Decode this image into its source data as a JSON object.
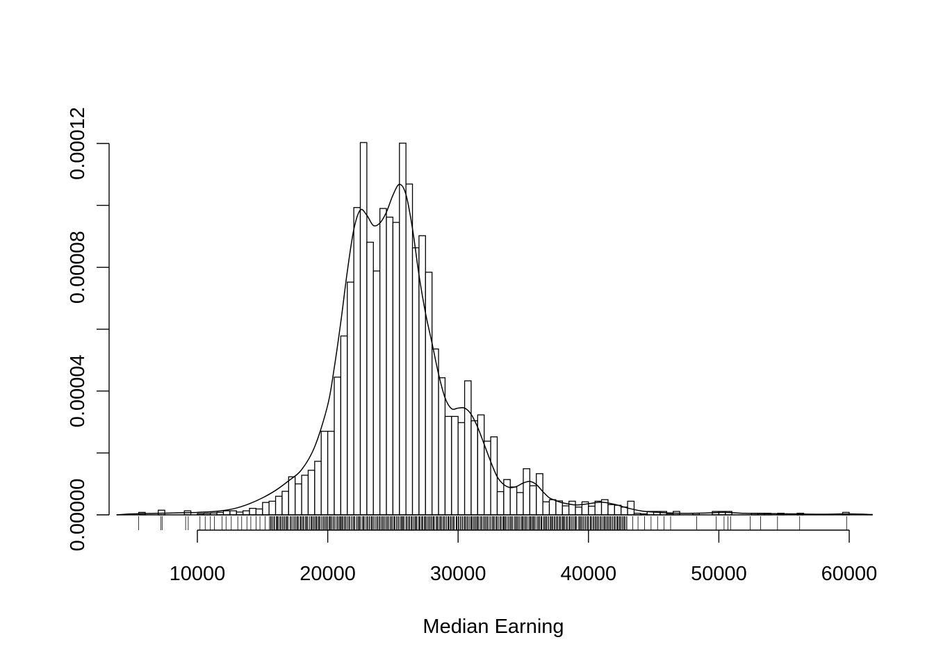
{
  "chart_data": {
    "type": "histogram",
    "title": "",
    "xlabel": "Median Earning",
    "ylabel": "",
    "x_ticks": [
      10000,
      20000,
      30000,
      40000,
      50000,
      60000
    ],
    "x_tick_labels": [
      "10000",
      "20000",
      "30000",
      "40000",
      "50000",
      "60000"
    ],
    "y_ticks": [
      0,
      2e-05,
      4e-05,
      6e-05,
      8e-05,
      0.0001,
      0.00012
    ],
    "y_tick_labels": [
      "0.00000",
      "",
      "0.00004",
      "",
      "0.00008",
      "",
      "0.00012"
    ],
    "xlim": [
      3800,
      61800
    ],
    "ylim": [
      0,
      0.000127
    ],
    "bin_width": 500,
    "bins": [
      [
        5500,
        8e-07
      ],
      [
        7000,
        1.5e-06
      ],
      [
        9000,
        1.3e-06
      ],
      [
        10000,
        4e-07
      ],
      [
        10500,
        5e-07
      ],
      [
        11000,
        6e-07
      ],
      [
        11500,
        8e-07
      ],
      [
        12000,
        1.3e-06
      ],
      [
        12500,
        1.3e-06
      ],
      [
        13000,
        9e-07
      ],
      [
        13500,
        1.3e-06
      ],
      [
        14000,
        2.1e-06
      ],
      [
        14500,
        1.9e-06
      ],
      [
        15000,
        4e-06
      ],
      [
        15500,
        4.4e-06
      ],
      [
        16000,
        6e-06
      ],
      [
        16500,
        7.6e-06
      ],
      [
        17000,
        1.23e-05
      ],
      [
        17500,
        1e-05
      ],
      [
        18000,
        1.28e-05
      ],
      [
        18500,
        1.44e-05
      ],
      [
        19000,
        1.73e-05
      ],
      [
        19500,
        2.7e-05
      ],
      [
        20000,
        2.7e-05
      ],
      [
        20500,
        4.45e-05
      ],
      [
        21000,
        5.78e-05
      ],
      [
        21500,
        7.52e-05
      ],
      [
        22000,
        9.93e-05
      ],
      [
        22500,
        0.0001203
      ],
      [
        23000,
        8.81e-05
      ],
      [
        23500,
        7.88e-05
      ],
      [
        24000,
        9.9e-05
      ],
      [
        24500,
        9.62e-05
      ],
      [
        25000,
        9.45e-05
      ],
      [
        25500,
        0.0001201
      ],
      [
        26000,
        0.0001069
      ],
      [
        26500,
        8.63e-05
      ],
      [
        27000,
        9.02e-05
      ],
      [
        27500,
        7.84e-05
      ],
      [
        28000,
        5.36e-05
      ],
      [
        28500,
        4.43e-05
      ],
      [
        29000,
        3.18e-05
      ],
      [
        29500,
        3.18e-05
      ],
      [
        30000,
        2.98e-05
      ],
      [
        30500,
        4.33e-05
      ],
      [
        31000,
        3.04e-05
      ],
      [
        31500,
        3.23e-05
      ],
      [
        32000,
        2.38e-05
      ],
      [
        32500,
        2.52e-05
      ],
      [
        33000,
        7.5e-06
      ],
      [
        33500,
        1.14e-05
      ],
      [
        34000,
        9e-06
      ],
      [
        34500,
        7.2e-06
      ],
      [
        35000,
        1.49e-05
      ],
      [
        35500,
        9.4e-06
      ],
      [
        36000,
        1.33e-05
      ],
      [
        36500,
        4.2e-06
      ],
      [
        37000,
        4.9e-06
      ],
      [
        37500,
        4.5e-06
      ],
      [
        38000,
        2.9e-06
      ],
      [
        38500,
        4.4e-06
      ],
      [
        39000,
        2.5e-06
      ],
      [
        39500,
        4.2e-06
      ],
      [
        40000,
        2.8e-06
      ],
      [
        40500,
        4.4e-06
      ],
      [
        41000,
        4.9e-06
      ],
      [
        41500,
        3.3e-06
      ],
      [
        42000,
        3.1e-06
      ],
      [
        42500,
        2.5e-06
      ],
      [
        43000,
        4.4e-06
      ],
      [
        43500,
        5e-07
      ],
      [
        44000,
        3e-07
      ],
      [
        44500,
        1.1e-06
      ],
      [
        45000,
        1.1e-06
      ],
      [
        45500,
        1.1e-06
      ],
      [
        46000,
        4e-07
      ],
      [
        46500,
        1.1e-06
      ],
      [
        48000,
        5e-07
      ],
      [
        49500,
        1.1e-06
      ],
      [
        50000,
        1.1e-06
      ],
      [
        50500,
        1.1e-06
      ],
      [
        52500,
        5e-07
      ],
      [
        53000,
        5e-07
      ],
      [
        53500,
        5e-07
      ],
      [
        54500,
        5e-07
      ],
      [
        56000,
        5e-07
      ],
      [
        59500,
        8e-07
      ]
    ],
    "density_curve": [
      [
        3800,
        0.0
      ],
      [
        5000,
        3e-07
      ],
      [
        7000,
        5e-07
      ],
      [
        9000,
        7e-07
      ],
      [
        10000,
        8e-07
      ],
      [
        11000,
        1e-06
      ],
      [
        12000,
        1.4e-06
      ],
      [
        13000,
        2.2e-06
      ],
      [
        14000,
        3.6e-06
      ],
      [
        15000,
        5.5e-06
      ],
      [
        16000,
        7.9e-06
      ],
      [
        17000,
        1.1e-05
      ],
      [
        18000,
        1.46e-05
      ],
      [
        19000,
        2.2e-05
      ],
      [
        20000,
        3.55e-05
      ],
      [
        20500,
        4.75e-05
      ],
      [
        21000,
        6.22e-05
      ],
      [
        21500,
        7.86e-05
      ],
      [
        22000,
        9.22e-05
      ],
      [
        22500,
        9.85e-05
      ],
      [
        23000,
        9.68e-05
      ],
      [
        23500,
        9.35e-05
      ],
      [
        24000,
        9.43e-05
      ],
      [
        24500,
        9.78e-05
      ],
      [
        25000,
        0.0001033
      ],
      [
        25500,
        0.0001068
      ],
      [
        26000,
        0.0001035
      ],
      [
        26500,
        9.25e-05
      ],
      [
        27000,
        7.75e-05
      ],
      [
        27500,
        6.52e-05
      ],
      [
        28000,
        5.55e-05
      ],
      [
        28500,
        4.55e-05
      ],
      [
        29000,
        3.78e-05
      ],
      [
        29500,
        3.43e-05
      ],
      [
        30000,
        3.45e-05
      ],
      [
        30500,
        3.45e-05
      ],
      [
        31000,
        3.25e-05
      ],
      [
        31500,
        2.83e-05
      ],
      [
        32000,
        2.28e-05
      ],
      [
        32500,
        1.72e-05
      ],
      [
        33000,
        1.23e-05
      ],
      [
        33500,
        9.8e-06
      ],
      [
        34000,
        8.8e-06
      ],
      [
        34500,
        9.2e-06
      ],
      [
        35000,
        1.03e-05
      ],
      [
        35500,
        1.08e-05
      ],
      [
        36000,
        9.8e-06
      ],
      [
        36500,
        7.5e-06
      ],
      [
        37000,
        5.5e-06
      ],
      [
        37500,
        4.6e-06
      ],
      [
        38000,
        3.9e-06
      ],
      [
        39000,
        3.2e-06
      ],
      [
        40000,
        3.6e-06
      ],
      [
        41000,
        4.1e-06
      ],
      [
        42000,
        3.4e-06
      ],
      [
        43000,
        2.2e-06
      ],
      [
        44000,
        1.3e-06
      ],
      [
        45000,
        9e-07
      ],
      [
        47000,
        5e-07
      ],
      [
        49000,
        6e-07
      ],
      [
        50500,
        8e-07
      ],
      [
        52000,
        5e-07
      ],
      [
        54000,
        4e-07
      ],
      [
        56000,
        3e-07
      ],
      [
        58000,
        2e-07
      ],
      [
        60000,
        3e-07
      ],
      [
        61800,
        1e-07
      ]
    ],
    "rug": {
      "dense_range": [
        15500,
        43000
      ],
      "dense_step": 70,
      "sparse_values": [
        5500,
        7200,
        7300,
        9100,
        9300,
        10200,
        10600,
        11000,
        11300,
        11900,
        12200,
        12600,
        13100,
        13400,
        13800,
        14100,
        14500,
        14800,
        15200,
        43400,
        43800,
        44300,
        44800,
        45300,
        45800,
        46300,
        48300,
        49800,
        50400,
        50700,
        50900,
        52400,
        53200,
        54500,
        56200,
        59800
      ]
    },
    "grid": false,
    "legend": "none"
  }
}
